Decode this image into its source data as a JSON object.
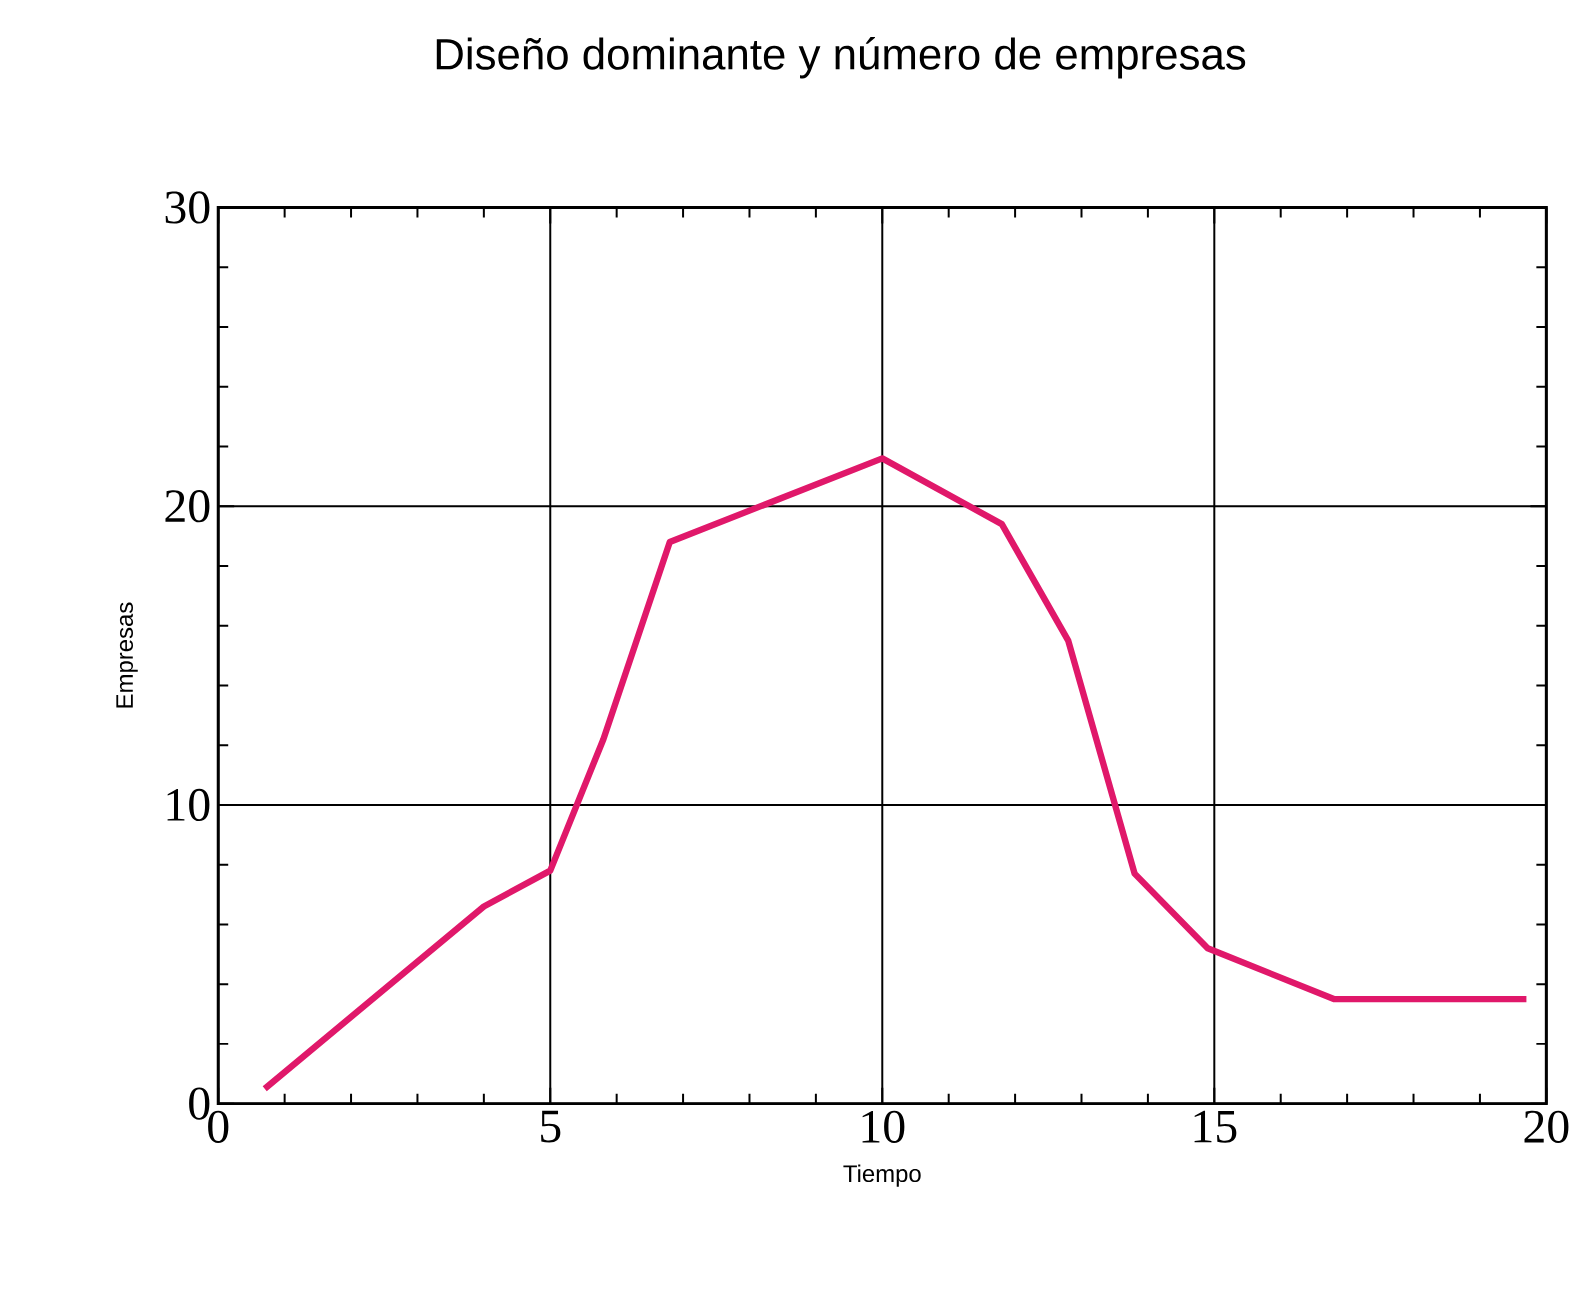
{
  "chart_data": {
    "type": "line",
    "title": "Diseño dominante y número de empresas",
    "xlabel": "Tiempo",
    "ylabel": "Empresas",
    "x": [
      0.7,
      4,
      5,
      5.8,
      6.8,
      10,
      11.8,
      12.8,
      13.8,
      14.9,
      16.8,
      19.7
    ],
    "series": [
      {
        "color": "#e0186a",
        "values": [
          0.5,
          6.6,
          7.8,
          12.2,
          18.8,
          21.6,
          19.4,
          15.5,
          7.7,
          5.2,
          3.5,
          3.5
        ]
      }
    ],
    "xlim": [
      0,
      20
    ],
    "ylim": [
      0,
      30
    ],
    "xticks": [
      0,
      5,
      10,
      15,
      20
    ],
    "yticks": [
      0,
      10,
      20,
      30
    ],
    "grid": true,
    "marker": "none",
    "line_style": "solid"
  }
}
